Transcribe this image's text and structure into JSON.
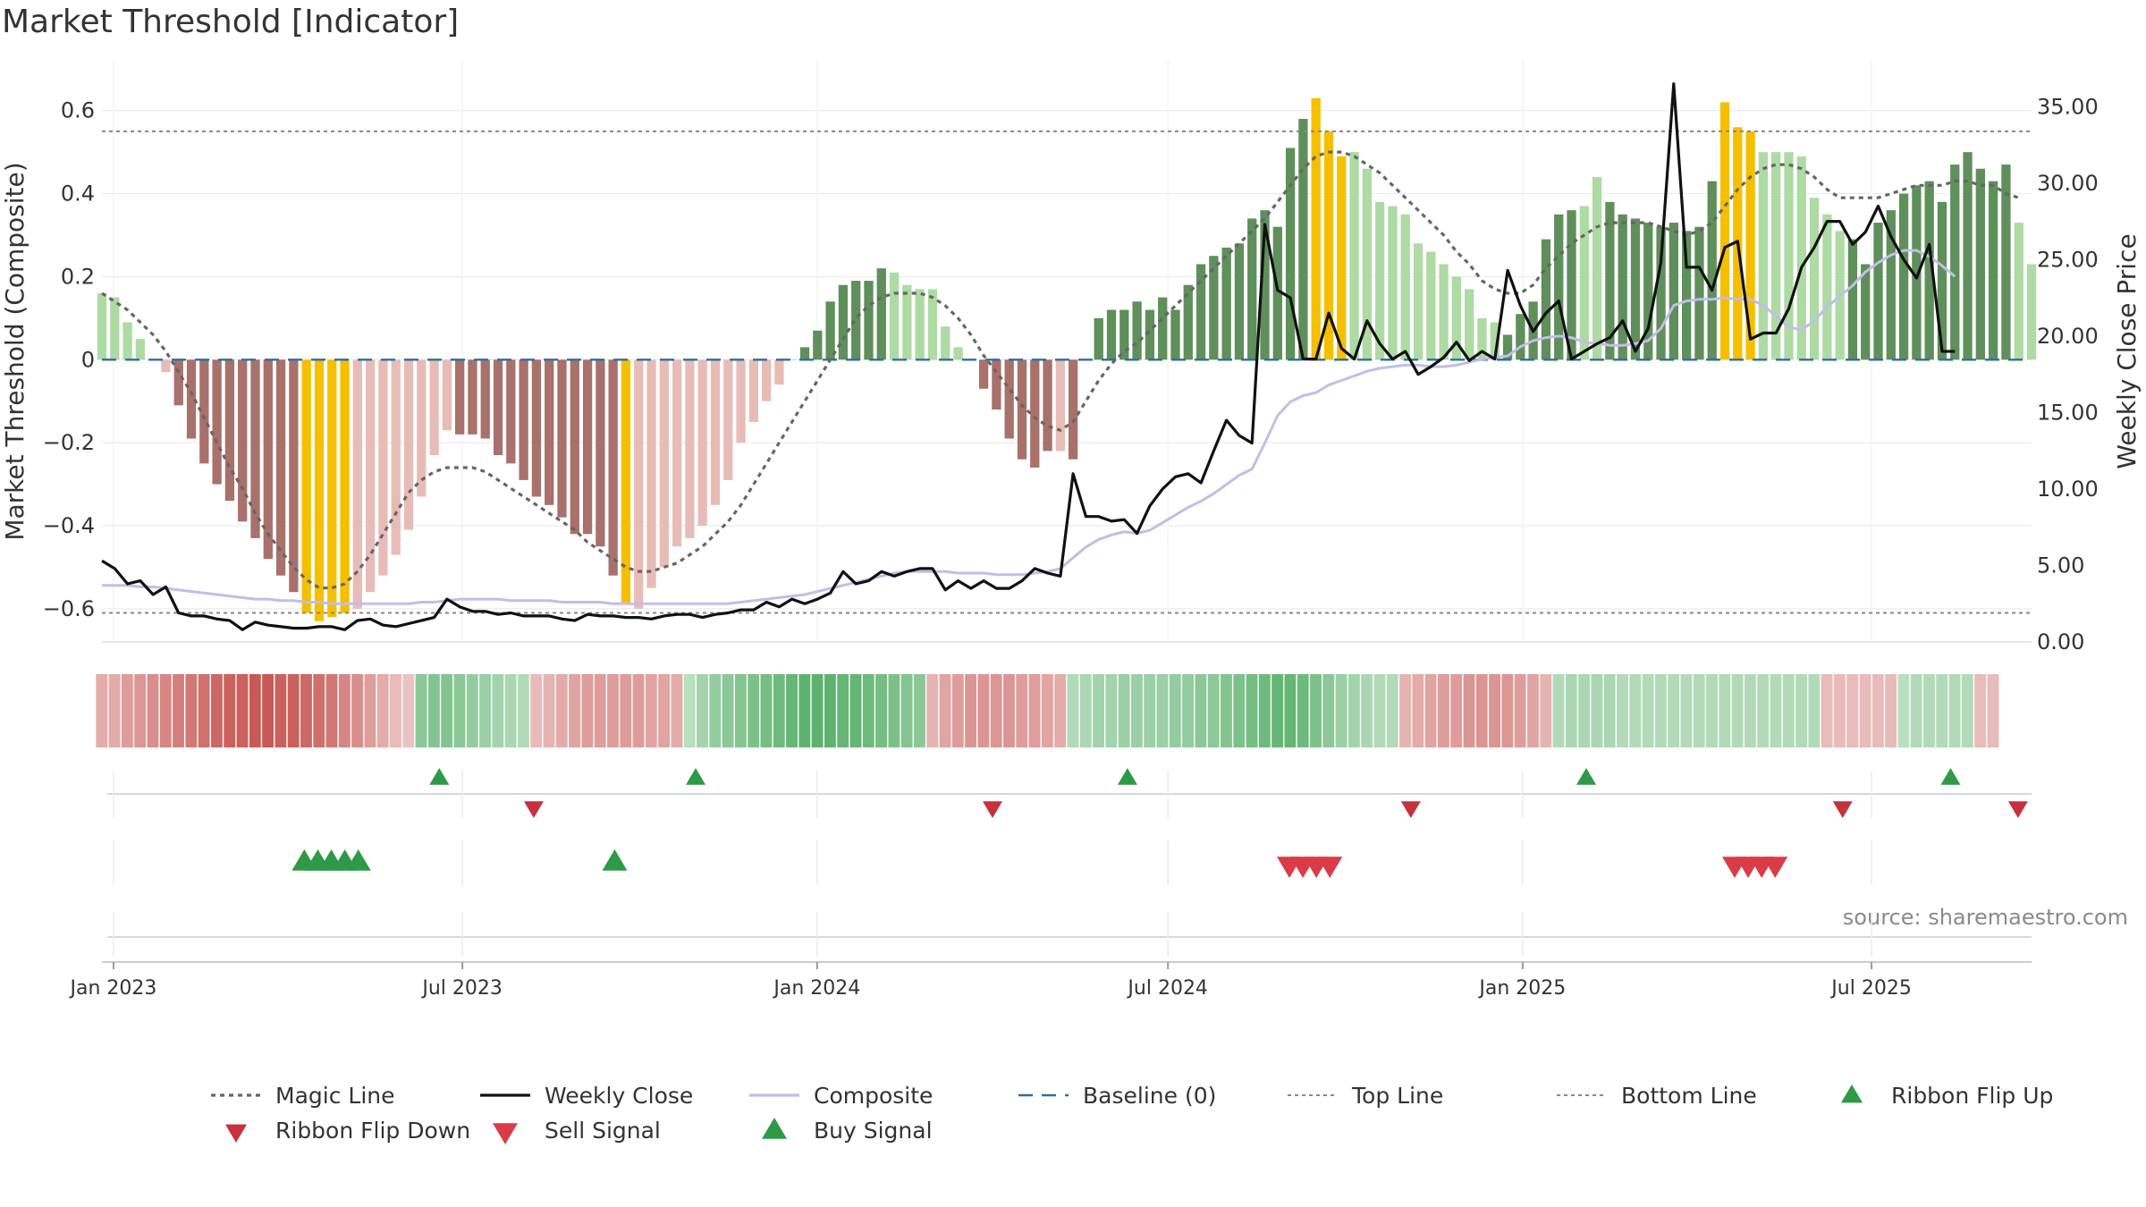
{
  "chart_data": {
    "type": "bar",
    "title": "Market Threshold [Indicator]",
    "source": "source: sharemaestro.com",
    "ylabel_left": "Market Threshold (Composite)",
    "ylabel_right": "Weekly Close Price",
    "ylim_left": [
      -0.68,
      0.72
    ],
    "ylim_right": [
      0,
      38
    ],
    "yticks_left": [
      {
        "value": 0.6,
        "label": "0.6"
      },
      {
        "value": 0.4,
        "label": "0.4"
      },
      {
        "value": 0.2,
        "label": "0.2"
      },
      {
        "value": 0,
        "label": "0"
      },
      {
        "value": -0.2,
        "label": "−0.2"
      },
      {
        "value": -0.4,
        "label": "−0.4"
      },
      {
        "value": -0.6,
        "label": "−0.6"
      }
    ],
    "yticks_right": [
      {
        "value": 35,
        "label": "35.00"
      },
      {
        "value": 30,
        "label": "30.00"
      },
      {
        "value": 25,
        "label": "25.00"
      },
      {
        "value": 20,
        "label": "20.00"
      },
      {
        "value": 15,
        "label": "15.00"
      },
      {
        "value": 10,
        "label": "10.00"
      },
      {
        "value": 5,
        "label": "5.00"
      },
      {
        "value": 0,
        "label": "0.00"
      }
    ],
    "x_start": "2022-12-26",
    "x_end": "2025-09-22",
    "xticks": [
      {
        "date": "2023-01-01",
        "label": "Jan 2023"
      },
      {
        "date": "2023-07-01",
        "label": "Jul 2023"
      },
      {
        "date": "2024-01-01",
        "label": "Jan 2024"
      },
      {
        "date": "2024-07-01",
        "label": "Jul 2024"
      },
      {
        "date": "2025-01-01",
        "label": "Jan 2025"
      },
      {
        "date": "2025-07-01",
        "label": "Jul 2025"
      }
    ],
    "top_line": 0.55,
    "bottom_line": -0.61,
    "baseline": 0,
    "composite_values": [
      0.16,
      0.15,
      0.09,
      0.05,
      0.0,
      -0.03,
      -0.11,
      -0.19,
      -0.25,
      -0.3,
      -0.34,
      -0.39,
      -0.43,
      -0.48,
      -0.52,
      -0.56,
      -0.61,
      -0.63,
      -0.62,
      -0.61,
      -0.6,
      -0.56,
      -0.52,
      -0.47,
      -0.41,
      -0.33,
      -0.23,
      -0.17,
      -0.18,
      -0.18,
      -0.19,
      -0.23,
      -0.25,
      -0.29,
      -0.33,
      -0.35,
      -0.38,
      -0.42,
      -0.42,
      -0.45,
      -0.52,
      -0.59,
      -0.6,
      -0.55,
      -0.5,
      -0.45,
      -0.43,
      -0.4,
      -0.35,
      -0.29,
      -0.2,
      -0.15,
      -0.1,
      -0.06,
      0.0,
      0.03,
      0.07,
      0.14,
      0.18,
      0.19,
      0.19,
      0.22,
      0.21,
      0.18,
      0.17,
      0.17,
      0.08,
      0.03,
      0.0,
      -0.07,
      -0.12,
      -0.19,
      -0.24,
      -0.26,
      -0.22,
      -0.22,
      -0.24,
      0.0,
      0.1,
      0.12,
      0.12,
      0.14,
      0.12,
      0.15,
      0.12,
      0.18,
      0.23,
      0.25,
      0.27,
      0.28,
      0.34,
      0.36,
      0.32,
      0.51,
      0.58,
      0.63,
      0.55,
      0.49,
      0.5,
      0.46,
      0.38,
      0.37,
      0.35,
      0.28,
      0.26,
      0.23,
      0.2,
      0.17,
      0.1,
      0.09,
      0.06,
      0.11,
      0.14,
      0.29,
      0.35,
      0.36,
      0.37,
      0.44,
      0.38,
      0.35,
      0.34,
      0.33,
      0.32,
      0.33,
      0.31,
      0.32,
      0.43,
      0.62,
      0.56,
      0.55,
      0.5,
      0.5,
      0.5,
      0.49,
      0.39,
      0.35,
      0.31,
      0.29,
      0.23,
      0.33,
      0.36,
      0.4,
      0.42,
      0.43,
      0.38,
      0.47,
      0.5,
      0.46,
      0.43,
      0.47,
      0.33,
      0.23
    ],
    "bar_colors": {
      "pos_strong": "#5f8f5a",
      "pos_weak": "#aedaa4",
      "neg_strong": "#a8716b",
      "neg_weak": "#e8bcb6",
      "extreme": "#f5bf00"
    },
    "extreme_bar_indices": [
      16,
      17,
      18,
      19,
      41,
      95,
      96,
      97,
      127,
      128,
      129
    ],
    "strong_bar_indices": [
      6,
      7,
      8,
      9,
      10,
      11,
      12,
      13,
      14,
      15,
      28,
      29,
      30,
      31,
      32,
      33,
      34,
      35,
      36,
      37,
      38,
      39,
      40,
      55,
      56,
      57,
      58,
      59,
      60,
      61,
      68,
      69,
      70,
      71,
      72,
      73,
      74,
      76,
      77,
      78,
      79,
      80,
      81,
      82,
      83,
      84,
      85,
      86,
      87,
      88,
      89,
      90,
      91,
      92,
      93,
      94,
      110,
      111,
      112,
      113,
      114,
      115,
      118,
      119,
      120,
      121,
      122,
      123,
      124,
      125,
      126,
      137,
      138,
      139,
      140,
      141,
      142,
      143,
      144,
      145,
      146,
      147,
      148,
      149
    ],
    "series": [
      {
        "name": "Magic Line",
        "color": "#666666",
        "style": "dotted",
        "axis": "left",
        "values": [
          0.16,
          0.14,
          0.12,
          0.09,
          0.06,
          0.02,
          -0.03,
          -0.08,
          -0.14,
          -0.2,
          -0.26,
          -0.31,
          -0.37,
          -0.42,
          -0.46,
          -0.5,
          -0.53,
          -0.55,
          -0.55,
          -0.54,
          -0.51,
          -0.47,
          -0.42,
          -0.37,
          -0.32,
          -0.29,
          -0.27,
          -0.26,
          -0.26,
          -0.26,
          -0.27,
          -0.29,
          -0.31,
          -0.33,
          -0.35,
          -0.37,
          -0.39,
          -0.41,
          -0.44,
          -0.46,
          -0.48,
          -0.5,
          -0.51,
          -0.51,
          -0.5,
          -0.49,
          -0.47,
          -0.45,
          -0.42,
          -0.39,
          -0.35,
          -0.3,
          -0.25,
          -0.2,
          -0.15,
          -0.1,
          -0.05,
          0.0,
          0.05,
          0.1,
          0.13,
          0.15,
          0.16,
          0.16,
          0.16,
          0.15,
          0.13,
          0.1,
          0.06,
          0.01,
          -0.03,
          -0.07,
          -0.11,
          -0.14,
          -0.16,
          -0.17,
          -0.15,
          -0.1,
          -0.05,
          -0.01,
          0.02,
          0.04,
          0.07,
          0.1,
          0.13,
          0.16,
          0.19,
          0.22,
          0.25,
          0.28,
          0.31,
          0.34,
          0.38,
          0.42,
          0.46,
          0.49,
          0.5,
          0.5,
          0.49,
          0.47,
          0.45,
          0.42,
          0.39,
          0.36,
          0.33,
          0.3,
          0.26,
          0.23,
          0.19,
          0.17,
          0.16,
          0.16,
          0.18,
          0.22,
          0.25,
          0.28,
          0.3,
          0.32,
          0.33,
          0.33,
          0.33,
          0.33,
          0.32,
          0.31,
          0.3,
          0.31,
          0.33,
          0.37,
          0.41,
          0.44,
          0.46,
          0.47,
          0.47,
          0.46,
          0.44,
          0.41,
          0.39,
          0.39,
          0.39,
          0.39,
          0.4,
          0.41,
          0.42,
          0.42,
          0.42,
          0.43,
          0.43,
          0.42,
          0.42,
          0.4,
          0.39
        ]
      },
      {
        "name": "Weekly Close",
        "color": "#111111",
        "style": "solid",
        "axis": "right",
        "values": [
          5.3,
          4.8,
          3.8,
          4.0,
          3.1,
          3.6,
          1.9,
          1.7,
          1.7,
          1.5,
          1.4,
          0.8,
          1.3,
          1.1,
          1.0,
          0.9,
          0.9,
          1.0,
          1.0,
          0.8,
          1.4,
          1.5,
          1.1,
          1.0,
          1.2,
          1.4,
          1.6,
          2.8,
          2.3,
          2.0,
          2.0,
          1.8,
          1.9,
          1.7,
          1.7,
          1.7,
          1.5,
          1.4,
          1.8,
          1.7,
          1.7,
          1.6,
          1.6,
          1.5,
          1.7,
          1.8,
          1.8,
          1.6,
          1.8,
          1.9,
          2.1,
          2.1,
          2.6,
          2.3,
          2.8,
          2.5,
          2.8,
          3.2,
          4.6,
          3.8,
          4.0,
          4.6,
          4.3,
          4.6,
          4.8,
          4.8,
          3.4,
          4.0,
          3.5,
          4.0,
          3.5,
          3.5,
          4.0,
          4.8,
          4.5,
          4.3,
          11.0,
          8.2,
          8.2,
          7.9,
          8.0,
          7.1,
          8.9,
          10.0,
          10.8,
          11.0,
          10.4,
          12.5,
          14.5,
          13.5,
          13.0,
          27.3,
          23.0,
          22.5,
          18.5,
          18.5,
          21.5,
          19.2,
          18.5,
          21.0,
          19.5,
          18.5,
          19.0,
          17.5,
          18.0,
          18.6,
          19.6,
          18.4,
          19.0,
          18.5,
          24.3,
          22.0,
          20.3,
          21.5,
          22.3,
          18.5,
          19.0,
          19.5,
          19.9,
          21.0,
          19.0,
          20.5,
          24.8,
          36.5,
          24.5,
          24.5,
          23.0,
          25.8,
          26.2,
          19.8,
          20.2,
          20.2,
          21.8,
          24.5,
          25.8,
          27.5,
          27.5,
          26.0,
          26.8,
          28.5,
          26.5,
          25.0,
          23.8,
          26.0,
          19.0,
          19.0
        ]
      },
      {
        "name": "Composite",
        "color": "#c2bde9",
        "style": "solid",
        "axis": "right",
        "values": [
          3.7,
          3.7,
          3.7,
          3.6,
          3.6,
          3.5,
          3.4,
          3.3,
          3.2,
          3.1,
          3.0,
          2.9,
          2.8,
          2.8,
          2.7,
          2.7,
          2.6,
          2.6,
          2.5,
          2.5,
          2.5,
          2.5,
          2.5,
          2.5,
          2.5,
          2.6,
          2.6,
          2.7,
          2.8,
          2.8,
          2.8,
          2.8,
          2.7,
          2.7,
          2.7,
          2.7,
          2.6,
          2.6,
          2.6,
          2.6,
          2.5,
          2.5,
          2.5,
          2.5,
          2.5,
          2.5,
          2.5,
          2.5,
          2.5,
          2.5,
          2.6,
          2.7,
          2.8,
          2.9,
          3.0,
          3.1,
          3.3,
          3.5,
          3.7,
          3.9,
          4.1,
          4.3,
          4.5,
          4.6,
          4.6,
          4.6,
          4.6,
          4.5,
          4.5,
          4.5,
          4.4,
          4.4,
          4.4,
          4.5,
          4.6,
          4.8,
          5.5,
          6.2,
          6.7,
          7.0,
          7.2,
          7.1,
          7.3,
          7.8,
          8.3,
          8.8,
          9.2,
          9.7,
          10.3,
          10.9,
          11.3,
          13.0,
          14.8,
          15.7,
          16.1,
          16.3,
          16.8,
          17.1,
          17.4,
          17.7,
          17.9,
          18.0,
          18.1,
          18.1,
          18.0,
          18.0,
          18.1,
          18.3,
          18.5,
          18.6,
          18.7,
          19.3,
          19.7,
          19.9,
          20.0,
          19.9,
          19.6,
          19.5,
          19.4,
          19.4,
          19.5,
          19.7,
          20.5,
          22.0,
          22.3,
          22.4,
          22.4,
          22.5,
          22.4,
          22.4,
          22.0,
          21.3,
          20.6,
          20.4,
          21.0,
          21.9,
          22.6,
          23.3,
          24.2,
          24.8,
          25.3,
          25.6,
          25.6,
          25.2,
          24.6,
          23.9
        ]
      },
      {
        "name": "Baseline (0)",
        "color": "#2e6f9e",
        "style": "dashed",
        "axis": "left"
      },
      {
        "name": "Top Line",
        "color": "#888888",
        "style": "dotted",
        "axis": "left"
      },
      {
        "name": "Bottom Line",
        "color": "#888888",
        "style": "dotted",
        "axis": "left"
      }
    ],
    "ribbon": [
      -0.35,
      -0.35,
      -0.45,
      -0.5,
      -0.55,
      -0.6,
      -0.65,
      -0.7,
      -0.75,
      -0.8,
      -0.85,
      -0.85,
      -0.9,
      -0.9,
      -0.85,
      -0.85,
      -0.8,
      -0.75,
      -0.7,
      -0.6,
      -0.55,
      -0.45,
      -0.35,
      -0.25,
      -0.2,
      0.55,
      0.6,
      0.6,
      0.55,
      0.5,
      0.45,
      0.4,
      0.35,
      0.3,
      -0.25,
      -0.3,
      -0.35,
      -0.4,
      -0.45,
      -0.45,
      -0.45,
      -0.45,
      -0.45,
      -0.4,
      -0.4,
      -0.35,
      0.25,
      0.4,
      0.5,
      0.55,
      0.6,
      0.65,
      0.7,
      0.75,
      0.8,
      0.85,
      0.85,
      0.85,
      0.8,
      0.8,
      0.75,
      0.7,
      0.65,
      0.6,
      0.55,
      -0.3,
      -0.4,
      -0.45,
      -0.5,
      -0.5,
      -0.5,
      -0.5,
      -0.45,
      -0.45,
      -0.4,
      -0.35,
      0.3,
      0.35,
      0.4,
      0.4,
      0.45,
      0.45,
      0.45,
      0.45,
      0.5,
      0.5,
      0.55,
      0.55,
      0.6,
      0.65,
      0.7,
      0.75,
      0.8,
      0.8,
      0.75,
      0.65,
      0.55,
      0.45,
      0.4,
      0.35,
      0.3,
      0.3,
      -0.3,
      -0.35,
      -0.4,
      -0.45,
      -0.45,
      -0.5,
      -0.5,
      -0.5,
      -0.5,
      -0.45,
      -0.4,
      -0.3,
      0.3,
      0.35,
      0.35,
      0.35,
      0.35,
      0.3,
      0.3,
      0.3,
      0.3,
      0.3,
      0.3,
      0.3,
      0.3,
      0.3,
      0.3,
      0.3,
      0.3,
      0.3,
      0.3,
      0.3,
      0.3,
      -0.25,
      -0.25,
      -0.25,
      -0.25,
      -0.25,
      -0.25,
      0.25,
      0.3,
      0.3,
      0.3,
      0.3,
      0.3,
      -0.25,
      -0.25
    ],
    "ribbon_colors": {
      "positive": "#4daa5f",
      "negative": "#c4504d"
    },
    "ribbon_flip_up_dates": [
      "2023-06-19",
      "2023-10-30",
      "2024-06-10",
      "2025-02-03",
      "2025-08-11"
    ],
    "ribbon_flip_down_dates": [
      "2023-08-07",
      "2024-04-01",
      "2024-11-04",
      "2025-06-16",
      "2025-09-15"
    ],
    "buy_signal_dates": [
      "2023-04-10",
      "2023-04-17",
      "2023-04-24",
      "2023-05-01",
      "2023-05-08",
      "2023-09-18"
    ],
    "sell_signal_dates": [
      "2024-09-02",
      "2024-09-09",
      "2024-09-16",
      "2024-09-23",
      "2025-04-21",
      "2025-04-28",
      "2025-05-05",
      "2025-05-12"
    ],
    "marker_colors": {
      "flip_up": "#2e9a47",
      "flip_down": "#c7313c",
      "buy": "#2e9a47",
      "sell": "#db3b47"
    },
    "legend": [
      {
        "name": "Magic Line"
      },
      {
        "name": "Weekly Close"
      },
      {
        "name": "Composite"
      },
      {
        "name": "Baseline (0)"
      },
      {
        "name": "Top Line"
      },
      {
        "name": "Bottom Line"
      },
      {
        "name": "Ribbon Flip Up"
      },
      {
        "name": "Ribbon Flip Down"
      },
      {
        "name": "Sell Signal"
      },
      {
        "name": "Buy Signal"
      }
    ],
    "legend_placement": "bottom"
  }
}
